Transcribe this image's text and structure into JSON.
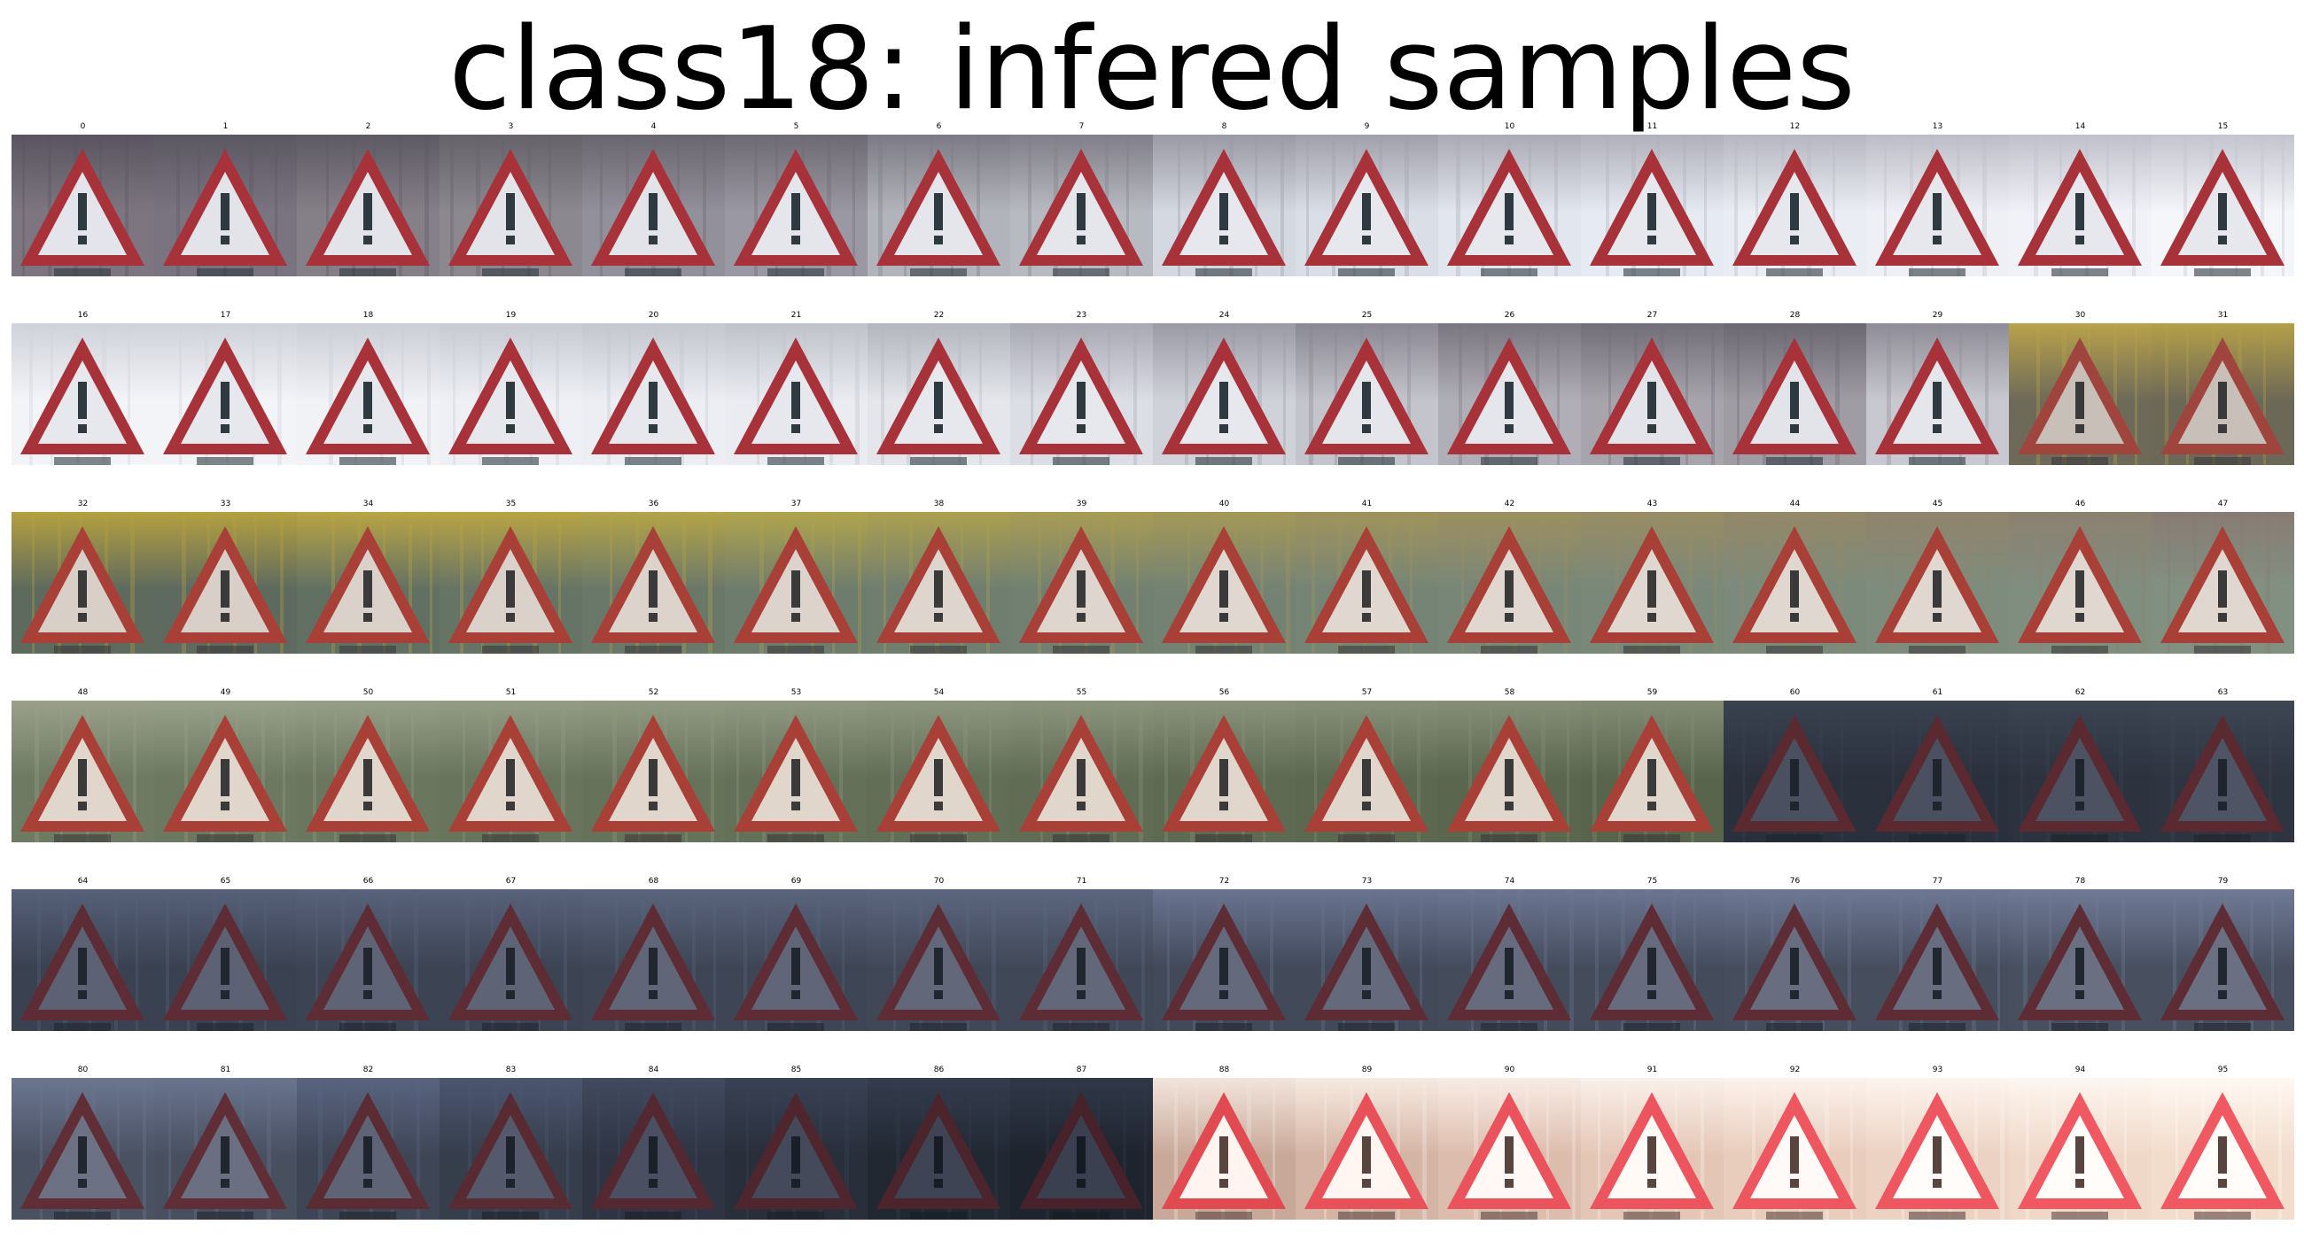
{
  "title": "class18: infered samples",
  "samples": [
    {
      "label": "0",
      "bg": "#7d7680",
      "glow": "#5a5560",
      "red": "#a8323a",
      "inner": "#e4e4ec",
      "mark": "#2f3a40"
    },
    {
      "label": "1",
      "bg": "#7a7480",
      "glow": "#5c5862",
      "red": "#a8323a",
      "inner": "#e2e4ea",
      "mark": "#2f3a40"
    },
    {
      "label": "2",
      "bg": "#857f88",
      "glow": "#5e5a64",
      "red": "#a8323a",
      "inner": "#e2e4ea",
      "mark": "#2f3a40"
    },
    {
      "label": "3",
      "bg": "#8c8890",
      "glow": "#66626a",
      "red": "#a8323a",
      "inner": "#e2e4ea",
      "mark": "#2f3a40"
    },
    {
      "label": "4",
      "bg": "#92909a",
      "glow": "#6a6670",
      "red": "#a8323a",
      "inner": "#e2e4ea",
      "mark": "#2f3a40"
    },
    {
      "label": "5",
      "bg": "#9a98a2",
      "glow": "#6e6a74",
      "red": "#a8323a",
      "inner": "#e4e6ec",
      "mark": "#2f3a40"
    },
    {
      "label": "6",
      "bg": "#b2b4bc",
      "glow": "#7c7a84",
      "red": "#a8323a",
      "inner": "#e4e6ec",
      "mark": "#2f3a40"
    },
    {
      "label": "7",
      "bg": "#b8bac2",
      "glow": "#807e88",
      "red": "#a8323a",
      "inner": "#e4e6ec",
      "mark": "#2f3a40"
    },
    {
      "label": "8",
      "bg": "#d4d8e0",
      "glow": "#9a9aa4",
      "red": "#a8323a",
      "inner": "#e6e8ee",
      "mark": "#2f3a40"
    },
    {
      "label": "9",
      "bg": "#dadee6",
      "glow": "#a0a0aa",
      "red": "#a8323a",
      "inner": "#e6e8ee",
      "mark": "#2f3a40"
    },
    {
      "label": "10",
      "bg": "#e2e6ee",
      "glow": "#aaaab4",
      "red": "#a8323a",
      "inner": "#e6e8ee",
      "mark": "#2f3a40"
    },
    {
      "label": "11",
      "bg": "#e6eaf2",
      "glow": "#b0b0ba",
      "red": "#a8323a",
      "inner": "#e6e8ee",
      "mark": "#2f3a40"
    },
    {
      "label": "12",
      "bg": "#eaeef4",
      "glow": "#b6b6c0",
      "red": "#a8323a",
      "inner": "#e6e8ee",
      "mark": "#2f3a40"
    },
    {
      "label": "13",
      "bg": "#eef0f6",
      "glow": "#bcbcc6",
      "red": "#a8323a",
      "inner": "#e6e8ee",
      "mark": "#2f3a40"
    },
    {
      "label": "14",
      "bg": "#f0f2f8",
      "glow": "#c0c0ca",
      "red": "#a8323a",
      "inner": "#e6e8ee",
      "mark": "#2f3a40"
    },
    {
      "label": "15",
      "bg": "#f4f6fa",
      "glow": "#c4c4ce",
      "red": "#a8323a",
      "inner": "#e6e8ee",
      "mark": "#2f3a40"
    },
    {
      "label": "16",
      "bg": "#f2f4f8",
      "glow": "#d0d2da",
      "red": "#a8323a",
      "inner": "#e6e8ee",
      "mark": "#2f3a40"
    },
    {
      "label": "17",
      "bg": "#f2f4f8",
      "glow": "#d0d2da",
      "red": "#a8323a",
      "inner": "#e6e8ee",
      "mark": "#2f3a40"
    },
    {
      "label": "18",
      "bg": "#f0f2f6",
      "glow": "#ccced6",
      "red": "#a8323a",
      "inner": "#e6e8ee",
      "mark": "#2f3a40"
    },
    {
      "label": "19",
      "bg": "#eef0f6",
      "glow": "#c8cad2",
      "red": "#a8323a",
      "inner": "#e6e8ee",
      "mark": "#2f3a40"
    },
    {
      "label": "20",
      "bg": "#eceef4",
      "glow": "#c4c6ce",
      "red": "#a8323a",
      "inner": "#e6e8ee",
      "mark": "#2f3a40"
    },
    {
      "label": "21",
      "bg": "#eaecf2",
      "glow": "#c0c2ca",
      "red": "#a8323a",
      "inner": "#e6e8ee",
      "mark": "#2f3a40"
    },
    {
      "label": "22",
      "bg": "#e4e6ec",
      "glow": "#b4b6be",
      "red": "#a8323a",
      "inner": "#e6e8ee",
      "mark": "#2f3a40"
    },
    {
      "label": "23",
      "bg": "#dcdee6",
      "glow": "#a8a8b2",
      "red": "#a8323a",
      "inner": "#e6e8ee",
      "mark": "#2f3a40"
    },
    {
      "label": "24",
      "bg": "#d0d2da",
      "glow": "#9a9aa4",
      "red": "#a8323a",
      "inner": "#e6e8ee",
      "mark": "#2f3a40"
    },
    {
      "label": "25",
      "bg": "#c4c4cc",
      "glow": "#8a8892",
      "red": "#a8323a",
      "inner": "#e4e6ec",
      "mark": "#2f3a40"
    },
    {
      "label": "26",
      "bg": "#b0aeb6",
      "glow": "#7a7680",
      "red": "#a8323a",
      "inner": "#e4e6ec",
      "mark": "#2f3a40"
    },
    {
      "label": "27",
      "bg": "#a8a4ac",
      "glow": "#726e78",
      "red": "#a8323a",
      "inner": "#e2e4ea",
      "mark": "#2f3a40"
    },
    {
      "label": "28",
      "bg": "#a09ca4",
      "glow": "#6c6872",
      "red": "#a8323a",
      "inner": "#e2e4ea",
      "mark": "#2f3a40"
    },
    {
      "label": "29",
      "bg": "#c8c8d0",
      "glow": "#8e8c96",
      "red": "#a8323a",
      "inner": "#e4e6ec",
      "mark": "#2f3a40"
    },
    {
      "label": "30",
      "bg": "#6e6a5a",
      "glow": "#b8a24a",
      "red": "#a0443e",
      "inner": "#c8c0b8",
      "mark": "#3a3a3a"
    },
    {
      "label": "31",
      "bg": "#6c6858",
      "glow": "#b4a048",
      "red": "#a0443e",
      "inner": "#c8c0b8",
      "mark": "#3a3a3a"
    },
    {
      "label": "32",
      "bg": "#5e6a5e",
      "glow": "#b4a040",
      "red": "#a84038",
      "inner": "#d8d0c8",
      "mark": "#3a3a3a"
    },
    {
      "label": "33",
      "bg": "#5e6a60",
      "glow": "#b4a040",
      "red": "#a84038",
      "inner": "#d8d0c8",
      "mark": "#3a3a3a"
    },
    {
      "label": "34",
      "bg": "#627064",
      "glow": "#b8a444",
      "red": "#a84038",
      "inner": "#dad2ca",
      "mark": "#3a3a3a"
    },
    {
      "label": "35",
      "bg": "#667466",
      "glow": "#b8a444",
      "red": "#a84038",
      "inner": "#dad2ca",
      "mark": "#3a3a3a"
    },
    {
      "label": "36",
      "bg": "#6a786a",
      "glow": "#b4a448",
      "red": "#a84038",
      "inner": "#dcd4cc",
      "mark": "#3a3a3a"
    },
    {
      "label": "37",
      "bg": "#6e7c6e",
      "glow": "#b0a44c",
      "red": "#a84038",
      "inner": "#dcd4cc",
      "mark": "#3a3a3a"
    },
    {
      "label": "38",
      "bg": "#707e70",
      "glow": "#aca050",
      "red": "#a84038",
      "inner": "#ded6ce",
      "mark": "#3a3a3a"
    },
    {
      "label": "39",
      "bg": "#728072",
      "glow": "#a89c54",
      "red": "#a84038",
      "inner": "#ded6ce",
      "mark": "#3a3a3a"
    },
    {
      "label": "40",
      "bg": "#748274",
      "glow": "#a49858",
      "red": "#a84038",
      "inner": "#e0d8d0",
      "mark": "#3a3a3a"
    },
    {
      "label": "41",
      "bg": "#768476",
      "glow": "#a0945c",
      "red": "#a84038",
      "inner": "#e0d8d0",
      "mark": "#3a3a3a"
    },
    {
      "label": "42",
      "bg": "#788678",
      "glow": "#9c9060",
      "red": "#a84038",
      "inner": "#e0d8d0",
      "mark": "#3a3a3a"
    },
    {
      "label": "43",
      "bg": "#7a887a",
      "glow": "#988c64",
      "red": "#a84038",
      "inner": "#e0d8d0",
      "mark": "#3a3a3a"
    },
    {
      "label": "44",
      "bg": "#7c8a7c",
      "glow": "#948868",
      "red": "#a84038",
      "inner": "#e0d8d0",
      "mark": "#3a3a3a"
    },
    {
      "label": "45",
      "bg": "#7e8c7e",
      "glow": "#90846c",
      "red": "#a84038",
      "inner": "#e0d8d0",
      "mark": "#3a3a3a"
    },
    {
      "label": "46",
      "bg": "#808e80",
      "glow": "#8c8070",
      "red": "#a84038",
      "inner": "#e0d8d0",
      "mark": "#3a3a3a"
    },
    {
      "label": "47",
      "bg": "#829082",
      "glow": "#887c74",
      "red": "#a84038",
      "inner": "#e0d8d0",
      "mark": "#3a3a3a"
    },
    {
      "label": "48",
      "bg": "#6e7a62",
      "glow": "#9aa08a",
      "red": "#a84038",
      "inner": "#e0d6cc",
      "mark": "#3a3a3a"
    },
    {
      "label": "49",
      "bg": "#6c7860",
      "glow": "#98a088",
      "red": "#a84038",
      "inner": "#e0d6cc",
      "mark": "#3a3a3a"
    },
    {
      "label": "50",
      "bg": "#6a765e",
      "glow": "#969e86",
      "red": "#a84038",
      "inner": "#e0d6cc",
      "mark": "#3a3a3a"
    },
    {
      "label": "51",
      "bg": "#68745c",
      "glow": "#949c84",
      "red": "#a84038",
      "inner": "#e0d6cc",
      "mark": "#3a3a3a"
    },
    {
      "label": "52",
      "bg": "#66725a",
      "glow": "#929a82",
      "red": "#a84038",
      "inner": "#e0d6cc",
      "mark": "#3a3a3a"
    },
    {
      "label": "53",
      "bg": "#647058",
      "glow": "#909880",
      "red": "#a84038",
      "inner": "#e0d6cc",
      "mark": "#3a3a3a"
    },
    {
      "label": "54",
      "bg": "#626e56",
      "glow": "#8e967e",
      "red": "#a84038",
      "inner": "#e0d6cc",
      "mark": "#3a3a3a"
    },
    {
      "label": "55",
      "bg": "#606c54",
      "glow": "#8c947c",
      "red": "#a84038",
      "inner": "#e0d6cc",
      "mark": "#3a3a3a"
    },
    {
      "label": "56",
      "bg": "#5e6a52",
      "glow": "#8a927a",
      "red": "#a84038",
      "inner": "#e0d6cc",
      "mark": "#3a3a3a"
    },
    {
      "label": "57",
      "bg": "#5c6850",
      "glow": "#889078",
      "red": "#a84038",
      "inner": "#e0d6cc",
      "mark": "#3a3a3a"
    },
    {
      "label": "58",
      "bg": "#5a664e",
      "glow": "#868e76",
      "red": "#a84038",
      "inner": "#e0d6cc",
      "mark": "#3a3a3a"
    },
    {
      "label": "59",
      "bg": "#58644c",
      "glow": "#848c74",
      "red": "#a84038",
      "inner": "#e0d6cc",
      "mark": "#3a3a3a"
    },
    {
      "label": "60",
      "bg": "#2a303c",
      "glow": "#3a4250",
      "red": "#5a2a30",
      "inner": "#4a5060",
      "mark": "#20242c"
    },
    {
      "label": "61",
      "bg": "#2a303c",
      "glow": "#3a4250",
      "red": "#5a2a30",
      "inner": "#4a5060",
      "mark": "#20242c"
    },
    {
      "label": "62",
      "bg": "#2c323e",
      "glow": "#3c4452",
      "red": "#5a2a30",
      "inner": "#4c5262",
      "mark": "#20242c"
    },
    {
      "label": "63",
      "bg": "#2e3440",
      "glow": "#3e4654",
      "red": "#5a2a30",
      "inner": "#4e5464",
      "mark": "#20242c"
    },
    {
      "label": "64",
      "bg": "#3a4252",
      "glow": "#566078",
      "red": "#5e2c34",
      "inner": "#5c6274",
      "mark": "#22262e"
    },
    {
      "label": "65",
      "bg": "#3a4252",
      "glow": "#566078",
      "red": "#5e2c34",
      "inner": "#5c6274",
      "mark": "#22262e"
    },
    {
      "label": "66",
      "bg": "#3c4454",
      "glow": "#58627a",
      "red": "#5e2c34",
      "inner": "#5e6476",
      "mark": "#22262e"
    },
    {
      "label": "67",
      "bg": "#3c4454",
      "glow": "#58627a",
      "red": "#5e2c34",
      "inner": "#5e6476",
      "mark": "#22262e"
    },
    {
      "label": "68",
      "bg": "#3e4656",
      "glow": "#5a647c",
      "red": "#5e2c34",
      "inner": "#606678",
      "mark": "#22262e"
    },
    {
      "label": "69",
      "bg": "#3e4656",
      "glow": "#5a647c",
      "red": "#5e2c34",
      "inner": "#606678",
      "mark": "#22262e"
    },
    {
      "label": "70",
      "bg": "#404858",
      "glow": "#5c667e",
      "red": "#5e2c34",
      "inner": "#62687a",
      "mark": "#22262e"
    },
    {
      "label": "71",
      "bg": "#404858",
      "glow": "#5c667e",
      "red": "#5e2c34",
      "inner": "#62687a",
      "mark": "#22262e"
    },
    {
      "label": "72",
      "bg": "#424a5a",
      "glow": "#6a7490",
      "red": "#5e2c34",
      "inner": "#646a7c",
      "mark": "#22262e"
    },
    {
      "label": "73",
      "bg": "#424a5a",
      "glow": "#6a7490",
      "red": "#5e2c34",
      "inner": "#646a7c",
      "mark": "#22262e"
    },
    {
      "label": "74",
      "bg": "#444c5c",
      "glow": "#6c7692",
      "red": "#5e2c34",
      "inner": "#666c7e",
      "mark": "#22262e"
    },
    {
      "label": "75",
      "bg": "#444c5c",
      "glow": "#6c7692",
      "red": "#5e2c34",
      "inner": "#666c7e",
      "mark": "#22262e"
    },
    {
      "label": "76",
      "bg": "#464e5e",
      "glow": "#6e7894",
      "red": "#5e2c34",
      "inner": "#686e80",
      "mark": "#22262e"
    },
    {
      "label": "77",
      "bg": "#464e5e",
      "glow": "#6e7894",
      "red": "#5e2c34",
      "inner": "#686e80",
      "mark": "#22262e"
    },
    {
      "label": "78",
      "bg": "#485060",
      "glow": "#707a96",
      "red": "#5e2c34",
      "inner": "#6a7082",
      "mark": "#22262e"
    },
    {
      "label": "79",
      "bg": "#485060",
      "glow": "#707a96",
      "red": "#5e2c34",
      "inner": "#6a7082",
      "mark": "#22262e"
    },
    {
      "label": "80",
      "bg": "#4a5262",
      "glow": "#6c7690",
      "red": "#602e36",
      "inner": "#6c7284",
      "mark": "#22262e"
    },
    {
      "label": "81",
      "bg": "#485060",
      "glow": "#6a748e",
      "red": "#602e36",
      "inner": "#6a7082",
      "mark": "#22262e"
    },
    {
      "label": "82",
      "bg": "#3e4656",
      "glow": "#5a6480",
      "red": "#5c2c34",
      "inner": "#5e6476",
      "mark": "#20242c"
    },
    {
      "label": "83",
      "bg": "#363e4c",
      "glow": "#4c5670",
      "red": "#582a32",
      "inner": "#545a6c",
      "mark": "#1e222a"
    },
    {
      "label": "84",
      "bg": "#2e3442",
      "glow": "#424a60",
      "red": "#542830",
      "inner": "#4a5062",
      "mark": "#1c2028"
    },
    {
      "label": "85",
      "bg": "#282e3a",
      "glow": "#3a4256",
      "red": "#50262e",
      "inner": "#444a5a",
      "mark": "#1a1e26"
    },
    {
      "label": "86",
      "bg": "#222832",
      "glow": "#343c4e",
      "red": "#4c242c",
      "inner": "#3e4454",
      "mark": "#181c24"
    },
    {
      "label": "87",
      "bg": "#1e242e",
      "glow": "#303848",
      "red": "#48222a",
      "inner": "#3a4050",
      "mark": "#161a22"
    },
    {
      "label": "88",
      "bg": "#c8a898",
      "glow": "#f2e4dc",
      "red": "#e04a50",
      "inner": "#fff4f0",
      "mark": "#5a4440"
    },
    {
      "label": "89",
      "bg": "#d4b4a4",
      "glow": "#f6eae2",
      "red": "#e8505a",
      "inner": "#fff6f2",
      "mark": "#5a4440"
    },
    {
      "label": "90",
      "bg": "#dcbcac",
      "glow": "#f8ece6",
      "red": "#ea525c",
      "inner": "#fff8f4",
      "mark": "#5a4440"
    },
    {
      "label": "91",
      "bg": "#e4c6b6",
      "glow": "#faf0ea",
      "red": "#ec545e",
      "inner": "#fffaf6",
      "mark": "#5a4440"
    },
    {
      "label": "92",
      "bg": "#e8ccbc",
      "glow": "#fcf2ec",
      "red": "#ee5660",
      "inner": "#fffaf8",
      "mark": "#5a4440"
    },
    {
      "label": "93",
      "bg": "#ecd2c2",
      "glow": "#fcf4ee",
      "red": "#ee5660",
      "inner": "#fffcfa",
      "mark": "#5a4440"
    },
    {
      "label": "94",
      "bg": "#f0d8c8",
      "glow": "#fdf6f0",
      "red": "#f05862",
      "inner": "#fffcfa",
      "mark": "#5a4440"
    },
    {
      "label": "95",
      "bg": "#f2dccc",
      "glow": "#fef8f2",
      "red": "#f05862",
      "inner": "#fffcfa",
      "mark": "#5a4440"
    }
  ]
}
